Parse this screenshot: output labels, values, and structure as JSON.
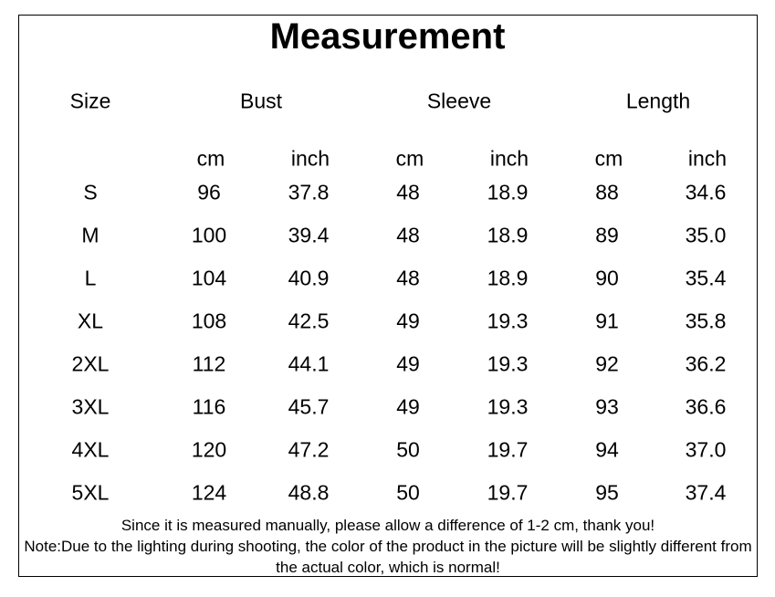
{
  "title": "Measurement",
  "table": {
    "headers": [
      "Size",
      "Bust",
      "Sleeve",
      "Length"
    ],
    "units": [
      "cm",
      "inch",
      "cm",
      "inch",
      "cm",
      "inch"
    ],
    "rows": [
      [
        "S",
        "96",
        "37.8",
        "48",
        "18.9",
        "88",
        "34.6"
      ],
      [
        "M",
        "100",
        "39.4",
        "48",
        "18.9",
        "89",
        "35.0"
      ],
      [
        "L",
        "104",
        "40.9",
        "48",
        "18.9",
        "90",
        "35.4"
      ],
      [
        "XL",
        "108",
        "42.5",
        "49",
        "19.3",
        "91",
        "35.8"
      ],
      [
        "2XL",
        "112",
        "44.1",
        "49",
        "19.3",
        "92",
        "36.2"
      ],
      [
        "3XL",
        "116",
        "45.7",
        "49",
        "19.3",
        "93",
        "36.6"
      ],
      [
        "4XL",
        "120",
        "47.2",
        "50",
        "19.7",
        "94",
        "37.0"
      ],
      [
        "5XL",
        "124",
        "48.8",
        "50",
        "19.7",
        "95",
        "37.4"
      ]
    ]
  },
  "notes": [
    "Since it is measured manually, please allow a difference of 1-2 cm, thank you!",
    "Note:Due to the lighting during shooting, the color of the product in the picture will be slightly different from the actual color, which is normal!"
  ]
}
